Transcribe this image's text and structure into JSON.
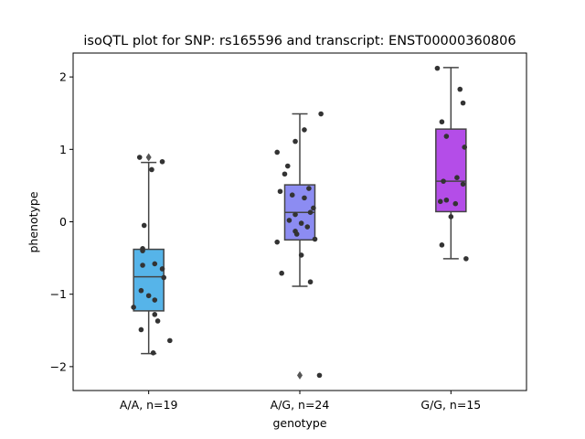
{
  "chart_data": {
    "type": "box",
    "title": "isoQTL plot for SNP: rs165596 and transcript: ENST00000360806",
    "xlabel": "genotype",
    "ylabel": "phenotype",
    "ylim": [
      -2.33,
      2.33
    ],
    "yticks": [
      -2,
      -1,
      0,
      1,
      2
    ],
    "ytick_labels": [
      "−2",
      "−1",
      "0",
      "1",
      "2"
    ],
    "categories": [
      "A/A, n=19",
      "A/G, n=24",
      "G/G, n=15"
    ],
    "colors": [
      "#56b4e9",
      "#8c8cf2",
      "#b44de8"
    ],
    "boxes": [
      {
        "q1": -1.23,
        "median": -0.76,
        "q3": -0.38,
        "whisker_low": -1.82,
        "whisker_high": 0.82,
        "outliers": [
          0.89
        ]
      },
      {
        "q1": -0.25,
        "median": 0.13,
        "q3": 0.51,
        "whisker_low": -0.89,
        "whisker_high": 1.49,
        "outliers": [
          -2.12
        ]
      },
      {
        "q1": 0.14,
        "median": 0.56,
        "q3": 1.28,
        "whisker_low": -0.51,
        "whisker_high": 2.13,
        "outliers": []
      }
    ],
    "points": [
      [
        {
          "jx": -0.06,
          "y": 0.89
        },
        {
          "jx": 0.02,
          "y": 0.72
        },
        {
          "jx": 0.09,
          "y": 0.83
        },
        {
          "jx": -0.03,
          "y": -0.05
        },
        {
          "jx": -0.04,
          "y": -0.37
        },
        {
          "jx": -0.04,
          "y": -0.4
        },
        {
          "jx": -0.04,
          "y": -0.6
        },
        {
          "jx": 0.04,
          "y": -0.58
        },
        {
          "jx": 0.09,
          "y": -0.65
        },
        {
          "jx": 0.1,
          "y": -0.77
        },
        {
          "jx": -0.05,
          "y": -0.95
        },
        {
          "jx": 0.0,
          "y": -1.02
        },
        {
          "jx": 0.04,
          "y": -1.08
        },
        {
          "jx": -0.1,
          "y": -1.18
        },
        {
          "jx": 0.04,
          "y": -1.28
        },
        {
          "jx": 0.06,
          "y": -1.37
        },
        {
          "jx": -0.05,
          "y": -1.49
        },
        {
          "jx": 0.14,
          "y": -1.64
        },
        {
          "jx": 0.03,
          "y": -1.81
        }
      ],
      [
        {
          "jx": 0.14,
          "y": 1.49
        },
        {
          "jx": 0.03,
          "y": 1.27
        },
        {
          "jx": -0.03,
          "y": 1.11
        },
        {
          "jx": -0.15,
          "y": 0.96
        },
        {
          "jx": -0.08,
          "y": 0.77
        },
        {
          "jx": -0.1,
          "y": 0.66
        },
        {
          "jx": -0.13,
          "y": 0.42
        },
        {
          "jx": 0.06,
          "y": 0.46
        },
        {
          "jx": -0.05,
          "y": 0.37
        },
        {
          "jx": 0.03,
          "y": 0.33
        },
        {
          "jx": 0.09,
          "y": 0.19
        },
        {
          "jx": 0.07,
          "y": 0.13
        },
        {
          "jx": -0.03,
          "y": 0.1
        },
        {
          "jx": -0.07,
          "y": 0.02
        },
        {
          "jx": 0.01,
          "y": -0.02
        },
        {
          "jx": 0.05,
          "y": -0.07
        },
        {
          "jx": -0.03,
          "y": -0.13
        },
        {
          "jx": 0.1,
          "y": -0.24
        },
        {
          "jx": -0.02,
          "y": -0.17
        },
        {
          "jx": -0.15,
          "y": -0.28
        },
        {
          "jx": 0.01,
          "y": -0.46
        },
        {
          "jx": -0.12,
          "y": -0.71
        },
        {
          "jx": 0.07,
          "y": -0.83
        },
        {
          "jx": 0.13,
          "y": -2.12
        }
      ],
      [
        {
          "jx": -0.09,
          "y": 2.12
        },
        {
          "jx": 0.06,
          "y": 1.83
        },
        {
          "jx": 0.08,
          "y": 1.64
        },
        {
          "jx": -0.06,
          "y": 1.38
        },
        {
          "jx": -0.03,
          "y": 1.18
        },
        {
          "jx": 0.09,
          "y": 1.03
        },
        {
          "jx": 0.04,
          "y": 0.61
        },
        {
          "jx": -0.05,
          "y": 0.56
        },
        {
          "jx": 0.08,
          "y": 0.52
        },
        {
          "jx": -0.03,
          "y": 0.3
        },
        {
          "jx": 0.03,
          "y": 0.25
        },
        {
          "jx": -0.07,
          "y": 0.28
        },
        {
          "jx": 0.0,
          "y": 0.07
        },
        {
          "jx": -0.06,
          "y": -0.32
        },
        {
          "jx": 0.1,
          "y": -0.51
        }
      ]
    ]
  }
}
